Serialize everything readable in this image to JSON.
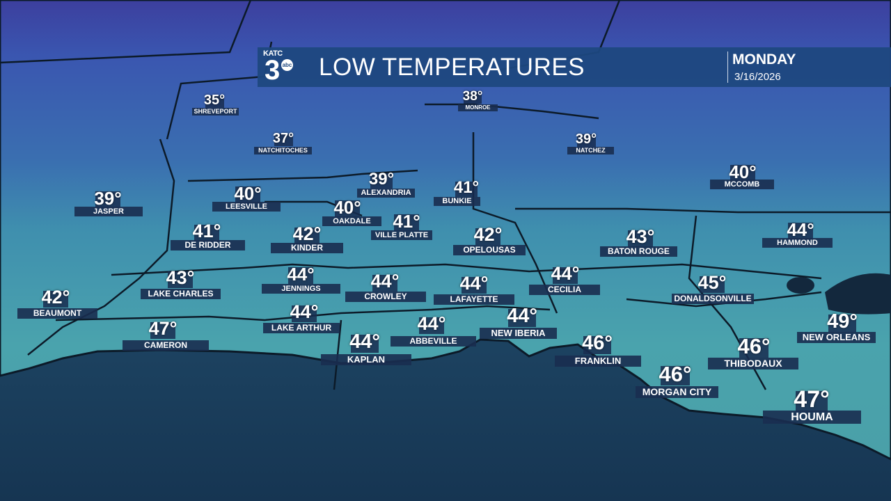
{
  "header": {
    "logo": {
      "station": "KATC",
      "channel": "3",
      "network": "abc"
    },
    "title": "LOW TEMPERATURES",
    "day": "MONDAY",
    "date": "3/16/2026"
  },
  "colors": {
    "header_bg": "#1e4880",
    "label_bg": "#192d50",
    "land_north": "#2d55a8",
    "land_south": "#4aa3ad",
    "gulf": "#1f4768"
  },
  "cities": [
    {
      "name": "SHREVEPORT",
      "temp": "35°"
    },
    {
      "name": "MONROE",
      "temp": "38°"
    },
    {
      "name": "NATCHITOCHES",
      "temp": "37°"
    },
    {
      "name": "NATCHEZ",
      "temp": "39°"
    },
    {
      "name": "MCCOMB",
      "temp": "40°"
    },
    {
      "name": "JASPER",
      "temp": "39°"
    },
    {
      "name": "LEESVILLE",
      "temp": "40°"
    },
    {
      "name": "ALEXANDRIA",
      "temp": "39°"
    },
    {
      "name": "BUNKIE",
      "temp": "41°"
    },
    {
      "name": "OAKDALE",
      "temp": "40°"
    },
    {
      "name": "VILLE PLATTE",
      "temp": "41°"
    },
    {
      "name": "DE RIDDER",
      "temp": "41°"
    },
    {
      "name": "KINDER",
      "temp": "42°"
    },
    {
      "name": "OPELOUSAS",
      "temp": "42°"
    },
    {
      "name": "BATON ROUGE",
      "temp": "43°"
    },
    {
      "name": "HAMMOND",
      "temp": "44°"
    },
    {
      "name": "JENNINGS",
      "temp": "44°"
    },
    {
      "name": "LAKE CHARLES",
      "temp": "43°"
    },
    {
      "name": "CROWLEY",
      "temp": "44°"
    },
    {
      "name": "LAFAYETTE",
      "temp": "44°"
    },
    {
      "name": "CECILIA",
      "temp": "44°"
    },
    {
      "name": "DONALDSONVILLE",
      "temp": "45°"
    },
    {
      "name": "BEAUMONT",
      "temp": "42°"
    },
    {
      "name": "LAKE ARTHUR",
      "temp": "44°"
    },
    {
      "name": "NEW IBERIA",
      "temp": "44°"
    },
    {
      "name": "NEW ORLEANS",
      "temp": "49°"
    },
    {
      "name": "CAMERON",
      "temp": "47°"
    },
    {
      "name": "ABBEVILLE",
      "temp": "44°"
    },
    {
      "name": "KAPLAN",
      "temp": "44°"
    },
    {
      "name": "FRANKLIN",
      "temp": "46°"
    },
    {
      "name": "THIBODAUX",
      "temp": "46°"
    },
    {
      "name": "MORGAN CITY",
      "temp": "46°"
    },
    {
      "name": "HOUMA",
      "temp": "47°"
    }
  ]
}
